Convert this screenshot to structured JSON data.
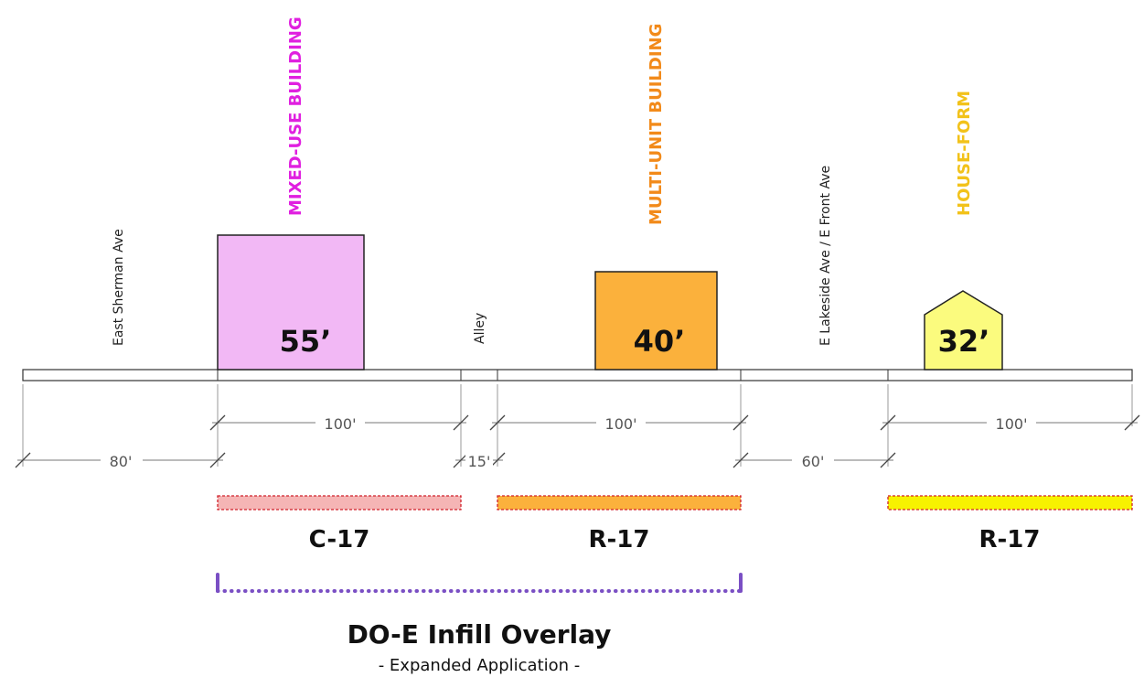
{
  "streets": {
    "east_sherman": "East Sherman Ave",
    "alley": "Alley",
    "lakeside": "E Lakeside Ave / E Front Ave"
  },
  "buildings": {
    "mixed_use": {
      "type": "MIXED-USE BUILDING",
      "height": "55’",
      "color": "#e020e0",
      "fill": "#f2b8f5"
    },
    "multi_unit": {
      "type": "MULTI-UNIT BUILDING",
      "height": "40’",
      "color": "#f28a1a",
      "fill": "#fbb13c"
    },
    "house_form": {
      "type": "HOUSE-FORM",
      "height": "32’",
      "color": "#f2c21a",
      "fill": "#fbfb7e"
    }
  },
  "dimensions": {
    "lot1": "100'",
    "lot2": "100'",
    "lot3": "100'",
    "sherman_width": "80'",
    "alley_width": "15'",
    "lakeside_width": "60'"
  },
  "zones": {
    "c17": {
      "label": "C-17",
      "color": "#f5b5b5"
    },
    "r17a": {
      "label": "R-17",
      "color": "#fbb13c"
    },
    "r17b": {
      "label": "R-17",
      "color": "#f7f200"
    }
  },
  "overlay": {
    "title": "DO-E Infill Overlay",
    "subtitle": "- Expanded Application -",
    "color": "#7a4fc4"
  }
}
